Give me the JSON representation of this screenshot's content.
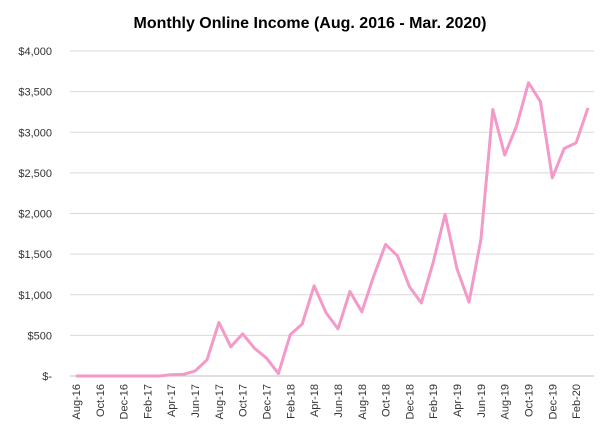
{
  "chart_data": {
    "type": "line",
    "title": "Monthly Online Income (Aug. 2016 - Mar. 2020)",
    "categories": [
      "Aug-16",
      null,
      "Oct-16",
      null,
      "Dec-16",
      null,
      "Feb-17",
      null,
      "Apr-17",
      null,
      "Jun-17",
      null,
      "Aug-17",
      null,
      "Oct-17",
      null,
      "Dec-17",
      null,
      "Feb-18",
      null,
      "Apr-18",
      null,
      "Jun-18",
      null,
      "Aug-18",
      null,
      "Oct-18",
      null,
      "Dec-18",
      null,
      "Feb-19",
      null,
      "Apr-19",
      null,
      "Jun-19",
      null,
      "Aug-19",
      null,
      "Oct-19",
      null,
      "Dec-19",
      null,
      "Feb-20",
      null
    ],
    "values": [
      0,
      0,
      0,
      0,
      0,
      0,
      0,
      0,
      15,
      20,
      60,
      200,
      660,
      360,
      520,
      340,
      220,
      30,
      510,
      640,
      1110,
      780,
      580,
      1040,
      790,
      1230,
      1620,
      1480,
      1100,
      900,
      1400,
      1990,
      1320,
      910,
      1680,
      3280,
      2720,
      3080,
      3610,
      3380,
      2440,
      2800,
      2870,
      3300
    ],
    "color": "#f49ac8",
    "ylim": [
      0,
      4000
    ],
    "yticks": [
      {
        "value": 0,
        "label": "$-"
      },
      {
        "value": 500,
        "label": "$500"
      },
      {
        "value": 1000,
        "label": "$1,000"
      },
      {
        "value": 1500,
        "label": "$1,500"
      },
      {
        "value": 2000,
        "label": "$2,000"
      },
      {
        "value": 2500,
        "label": "$2,500"
      },
      {
        "value": 3000,
        "label": "$3,000"
      },
      {
        "value": 3500,
        "label": "$3,500"
      },
      {
        "value": 4000,
        "label": "$4,000"
      }
    ],
    "grid": true
  }
}
